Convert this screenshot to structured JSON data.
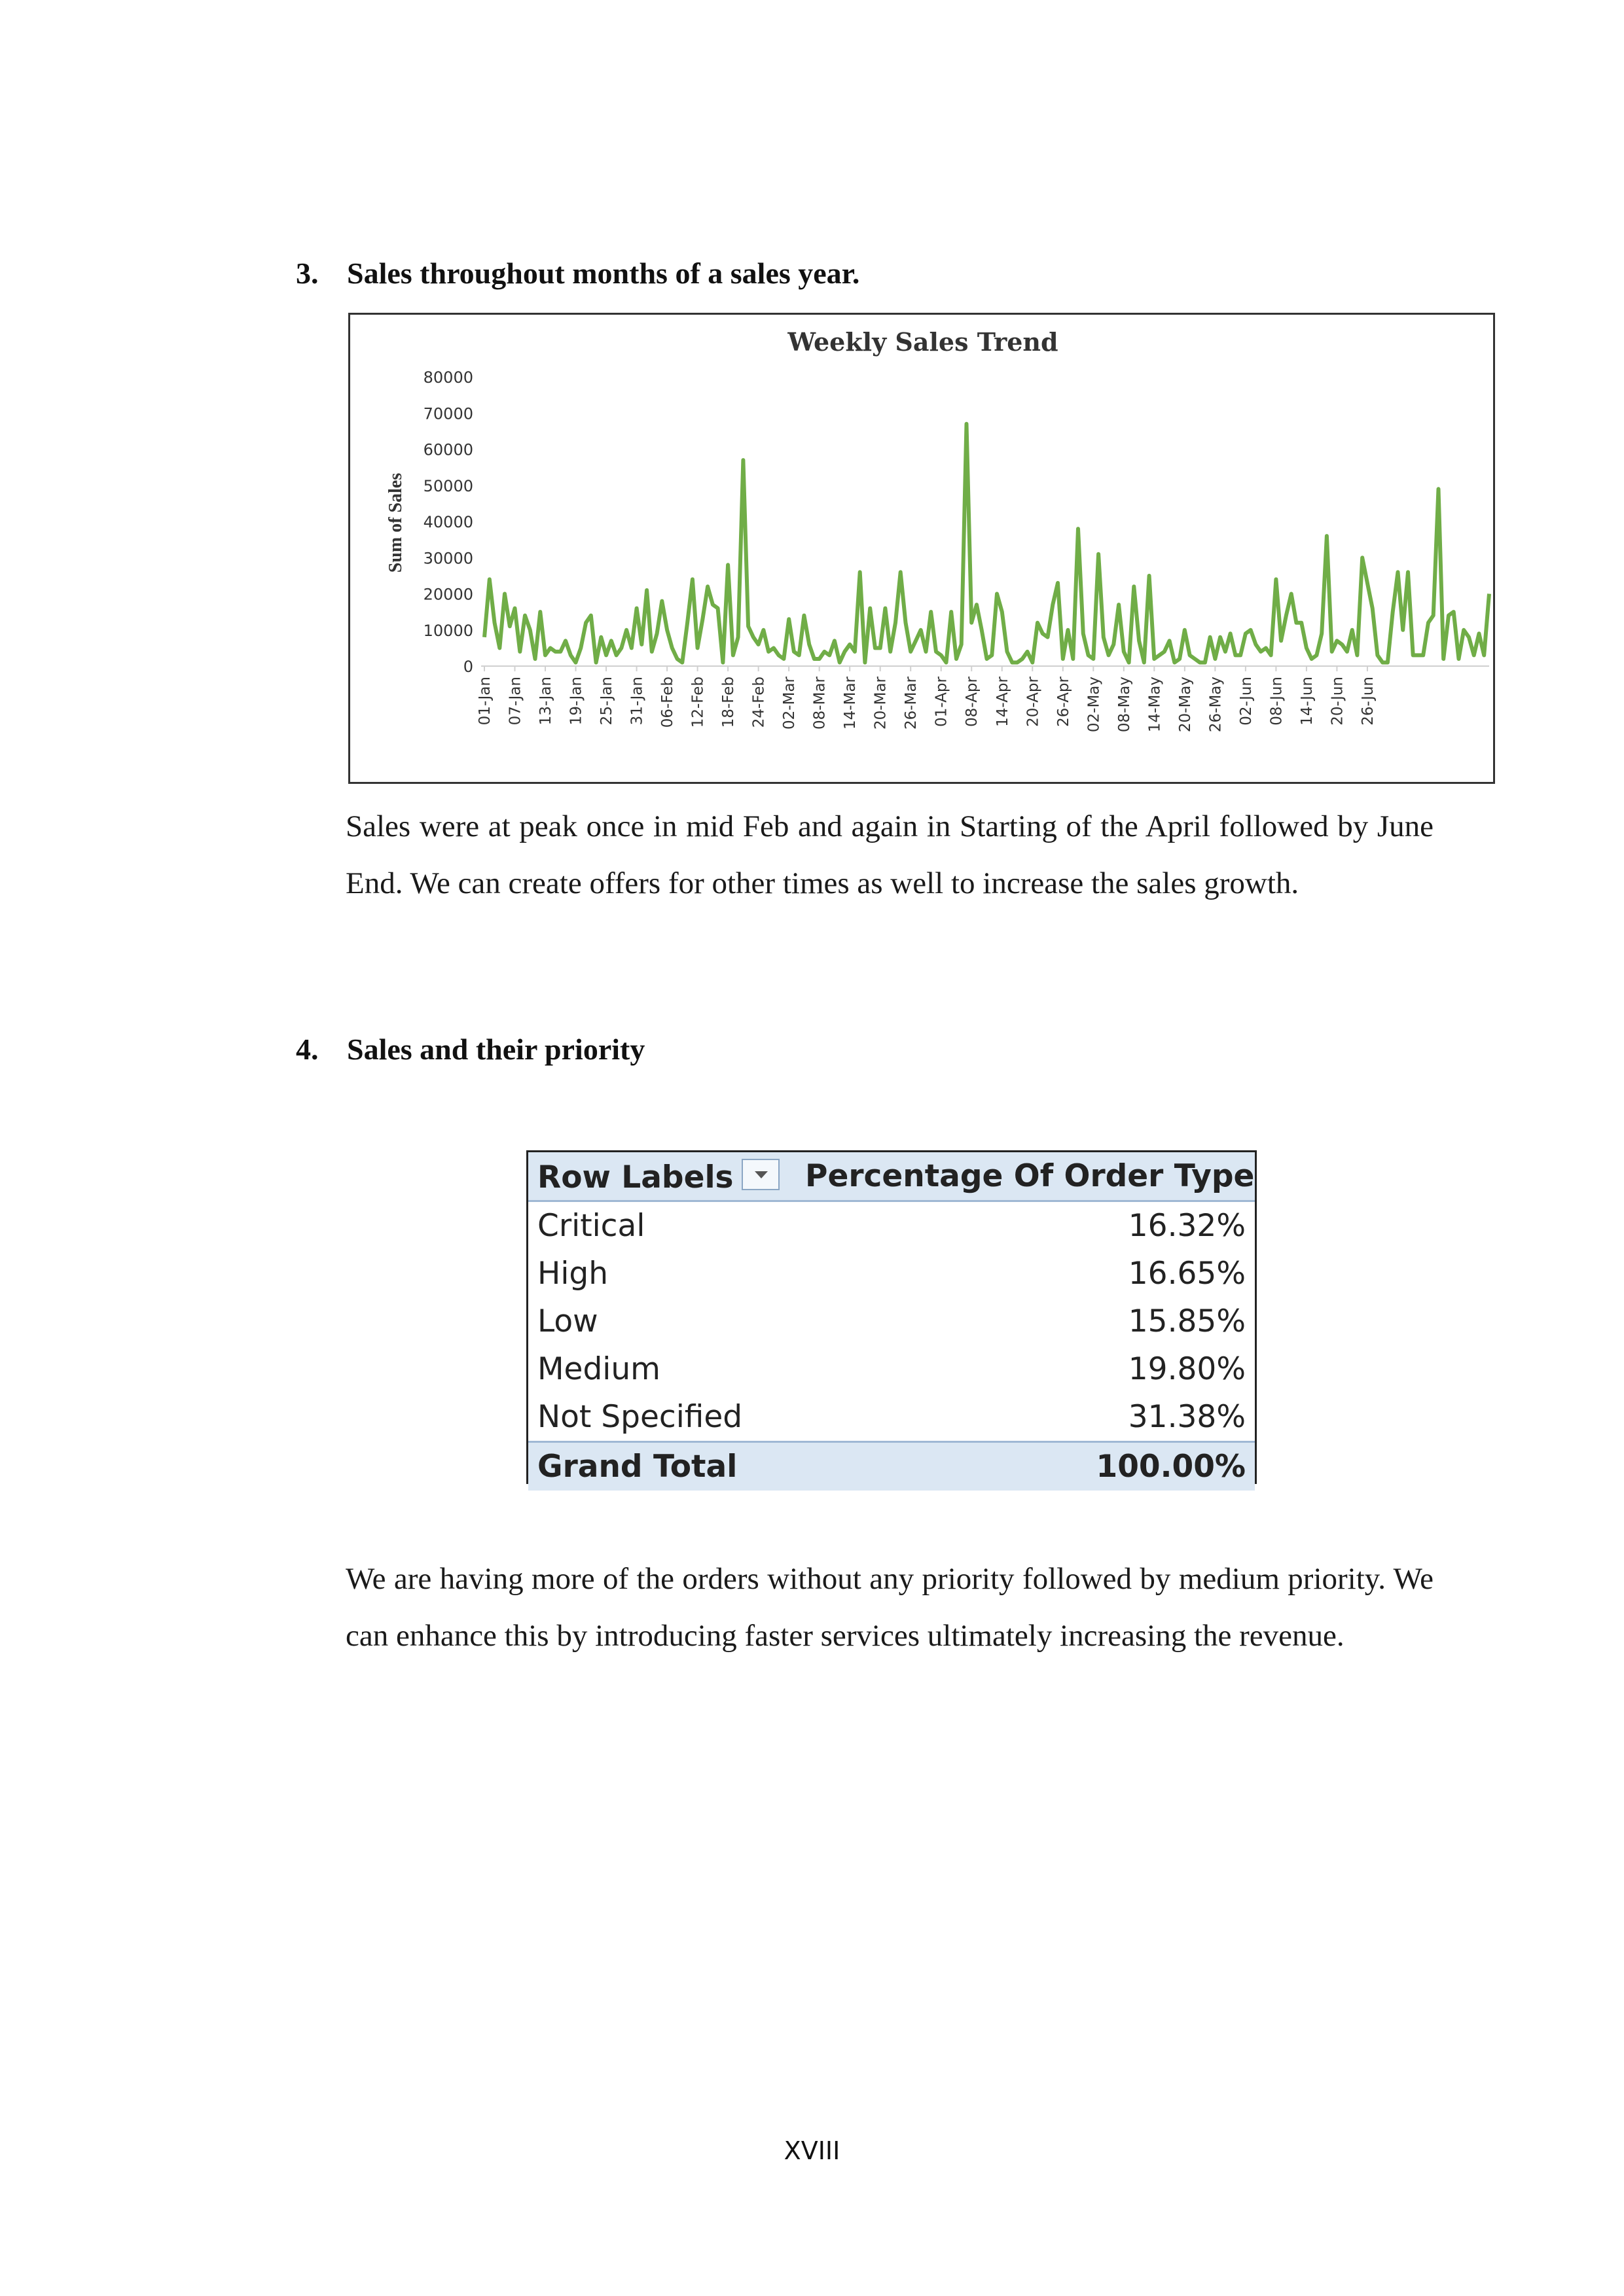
{
  "section3": {
    "number": "3.",
    "title": "Sales throughout months of a sales year.",
    "paragraph": "Sales were at peak once in mid Feb and again in Starting of the April followed by June End. We can create offers for other times as well to increase the sales growth."
  },
  "chart_data": {
    "type": "line",
    "title": "Weekly Sales Trend",
    "ylabel": "Sum of Sales",
    "xlabel": "",
    "ylim": [
      0,
      80000
    ],
    "yticks": [
      0,
      10000,
      20000,
      30000,
      40000,
      50000,
      60000,
      70000,
      80000
    ],
    "xtick_labels": [
      "01-Jan",
      "07-Jan",
      "13-Jan",
      "19-Jan",
      "25-Jan",
      "31-Jan",
      "06-Feb",
      "12-Feb",
      "18-Feb",
      "24-Feb",
      "02-Mar",
      "08-Mar",
      "14-Mar",
      "20-Mar",
      "26-Mar",
      "01-Apr",
      "08-Apr",
      "14-Apr",
      "20-Apr",
      "26-Apr",
      "02-May",
      "08-May",
      "14-May",
      "20-May",
      "26-May",
      "02-Jun",
      "08-Jun",
      "14-Jun",
      "20-Jun",
      "26-Jun"
    ],
    "line_color": "#70ad47",
    "grid": false,
    "legend": "none",
    "series": [
      {
        "values": [
          8000,
          24000,
          12000,
          5000,
          20000,
          11000,
          16000,
          4000,
          14000,
          10000,
          2000,
          15000,
          3000,
          5000,
          4000,
          4000,
          7000,
          3000,
          1000,
          5000,
          12000,
          14000,
          1000,
          8000,
          3000,
          7000,
          3000,
          5000,
          10000,
          5000,
          16000,
          6000,
          21000,
          4000,
          9000,
          18000,
          10000,
          5000,
          2000,
          1000,
          12000,
          24000,
          5000,
          13000,
          22000,
          17000,
          16000,
          1000,
          28000,
          3000,
          8000,
          57000,
          11000,
          8000,
          6000,
          10000,
          4000,
          5000,
          3000,
          2000,
          13000,
          4000,
          3000,
          14000,
          6000,
          2000,
          2000,
          4000,
          3000,
          7000,
          1000,
          4000,
          6000,
          4000,
          26000,
          1000,
          16000,
          5000,
          5000,
          16000,
          4000,
          12000,
          26000,
          12000,
          4000,
          7000,
          10000,
          4000,
          15000,
          4000,
          3000,
          1000,
          15000,
          2000,
          6000,
          67000,
          12000,
          17000,
          10000,
          2000,
          3000,
          20000,
          15000,
          4000,
          1000,
          1000,
          2000,
          4000,
          1000,
          12000,
          9000,
          8000,
          17000,
          23000,
          2000,
          10000,
          2000,
          38000,
          9000,
          3000,
          2000,
          31000,
          8000,
          3000,
          6000,
          17000,
          4000,
          1000,
          22000,
          7000,
          1000,
          25000,
          2000,
          3000,
          4000,
          7000,
          1000,
          2000,
          10000,
          3000,
          2000,
          1000,
          1000,
          8000,
          2000,
          8000,
          4000,
          9000,
          3000,
          3000,
          9000,
          10000,
          6000,
          4000,
          5000,
          3000,
          24000,
          7000,
          14000,
          20000,
          12000,
          12000,
          5000,
          2000,
          3000,
          9000,
          36000,
          4000,
          7000,
          6000,
          4000,
          10000,
          3000,
          30000,
          23000,
          16000,
          3000,
          1000,
          1000,
          15000,
          26000,
          10000,
          26000,
          3000,
          3000,
          3000,
          12000,
          14000,
          49000,
          2000,
          14000,
          15000,
          2000,
          10000,
          8000,
          3000,
          9000,
          3000,
          20000
        ]
      }
    ]
  },
  "section4": {
    "number": "4.",
    "title": "Sales and their priority",
    "paragraph": "We are having more of the orders without any priority followed by medium priority. We can enhance this by introducing faster services ultimately increasing the revenue."
  },
  "pivot_table": {
    "header_row_labels": "Row Labels",
    "header_value": "Percentage Of Order Type",
    "filter_icon": "dropdown-arrow-icon",
    "rows": [
      {
        "label": "Critical",
        "value": "16.32%"
      },
      {
        "label": "High",
        "value": "16.65%"
      },
      {
        "label": "Low",
        "value": "15.85%"
      },
      {
        "label": "Medium",
        "value": "19.80%"
      },
      {
        "label": "Not Specified",
        "value": "31.38%"
      }
    ],
    "total": {
      "label": "Grand Total",
      "value": "100.00%"
    }
  },
  "page_number": "XVIII"
}
